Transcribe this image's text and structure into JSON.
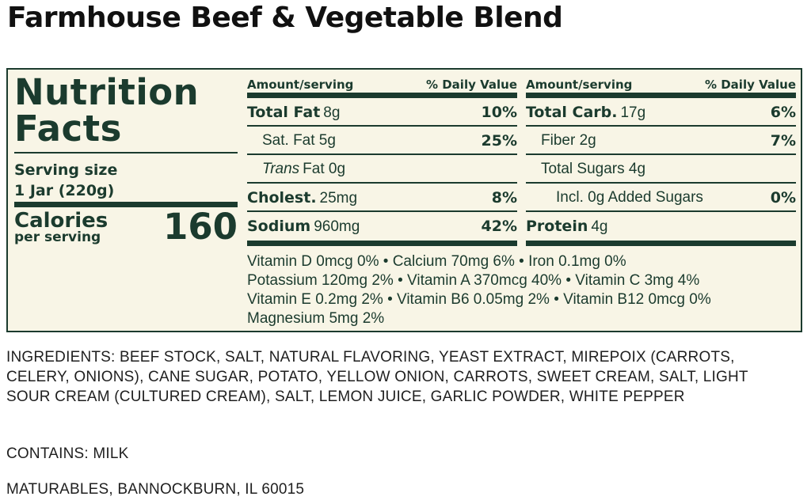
{
  "product": {
    "title": "Farmhouse Beef & Vegetable Blend"
  },
  "facts": {
    "title_line1": "Nutrition",
    "title_line2": "Facts",
    "serving_size_label": "Serving size",
    "serving_size_value": "1 Jar (220g)",
    "calories_label": "Calories",
    "calories_sub": "per serving",
    "calories_value": "160",
    "header_amount": "Amount/serving",
    "header_dv": "% Daily Value",
    "left_rows": [
      {
        "name": "Total Fat",
        "amount": "8g",
        "dv": "10%",
        "bold": true
      },
      {
        "name": "Sat. Fat 5g",
        "amount": "",
        "dv": "25%",
        "bold": false
      },
      {
        "name": "Trans",
        "amount": "Fat 0g",
        "dv": "",
        "bold": false
      },
      {
        "name": "Cholest.",
        "amount": "25mg",
        "dv": "8%",
        "bold": true
      },
      {
        "name": "Sodium",
        "amount": "960mg",
        "dv": "42%",
        "bold": true
      }
    ],
    "right_rows": [
      {
        "name": "Total Carb.",
        "amount": "17g",
        "dv": "6%",
        "bold": true
      },
      {
        "name": "Fiber 2g",
        "amount": "",
        "dv": "7%",
        "bold": false
      },
      {
        "name": "Total Sugars 4g",
        "amount": "",
        "dv": "",
        "bold": false
      },
      {
        "name": "Incl. 0g Added Sugars",
        "amount": "",
        "dv": "0%",
        "bold": false
      },
      {
        "name": "Protein",
        "amount": "4g",
        "dv": "",
        "bold": true
      }
    ],
    "vitamins": [
      "Vitamin D 0mcg 0% • Calcium 70mg 6% • Iron 0.1mg 0%",
      "Potassium 120mg 2% • Vitamin A 370mcg 40% • Vitamin C 3mg 4%",
      "Vitamin E 0.2mg 2% • Vitamin B6 0.05mg 2% • Vitamin B12 0mcg 0%",
      "Magnesium 5mg 2%"
    ]
  },
  "ingredients": "INGREDIENTS: BEEF STOCK, SALT, NATURAL FLAVORING, YEAST EXTRACT, MIREPOIX (CARROTS, CELERY, ONIONS), CANE SUGAR, POTATO, YELLOW ONION, CARROTS, SWEET CREAM, SALT, LIGHT SOUR CREAM (CULTURED CREAM), SALT, LEMON JUICE, GARLIC POWDER, WHITE PEPPER",
  "contains": "CONTAINS: MILK",
  "manufacturer": "MATURABLES, BANNOCKBURN, IL 60015"
}
